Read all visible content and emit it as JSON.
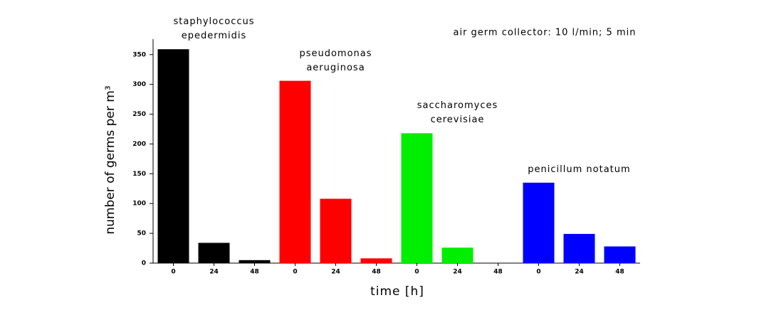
{
  "chart_data": {
    "type": "bar",
    "annotation": "air germ collector: 10 l/min; 5 min",
    "x_label": "time [h]",
    "y_label": "number of germs per m³",
    "categories": [
      "0",
      "24",
      "48"
    ],
    "series": [
      {
        "name": "staphylococcus epedermidis",
        "color": "#000000",
        "values": [
          359,
          34,
          5
        ]
      },
      {
        "name": "pseudomonas aeruginosa",
        "color": "#ff0000",
        "values": [
          306,
          108,
          8
        ]
      },
      {
        "name": "saccharomyces cerevisiae",
        "color": "#00ee00",
        "values": [
          218,
          26,
          0
        ]
      },
      {
        "name": "penicillum notatum",
        "color": "#0000ff",
        "values": [
          135,
          49,
          28
        ]
      }
    ],
    "ylim": [
      0,
      370
    ],
    "yticks": [
      0,
      50,
      100,
      150,
      200,
      250,
      300,
      350
    ]
  }
}
